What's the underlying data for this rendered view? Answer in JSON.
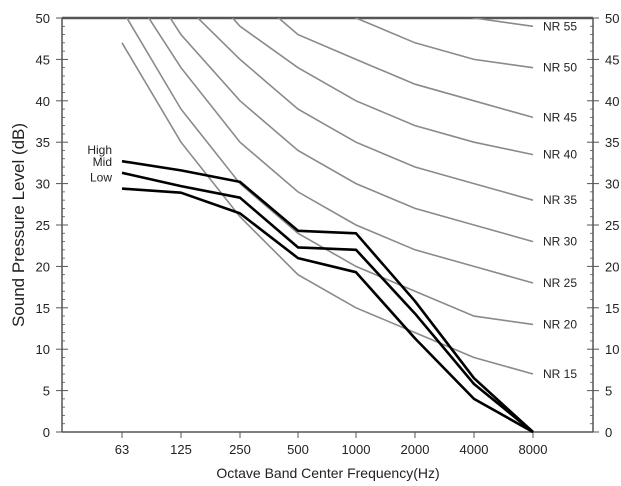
{
  "chart_data": {
    "type": "line",
    "xlabel": "Octave Band Center Frequency(Hz)",
    "ylabel": "Sound Pressure Level (dB)",
    "categories": [
      "63",
      "125",
      "250",
      "500",
      "1000",
      "2000",
      "4000",
      "8000"
    ],
    "ylim": [
      0,
      50
    ],
    "yticks": [
      "0",
      "5",
      "10",
      "15",
      "20",
      "25",
      "30",
      "35",
      "40",
      "45",
      "50"
    ],
    "grid": false,
    "reference_series": [
      {
        "name": "NR 15",
        "values": [
          47,
          35,
          26,
          19,
          15,
          12,
          9,
          7
        ]
      },
      {
        "name": "NR 20",
        "values": [
          51,
          39,
          30,
          24,
          20,
          17,
          14,
          13
        ]
      },
      {
        "name": "NR 25",
        "values": [
          55,
          44,
          35,
          29,
          25,
          22,
          20,
          18
        ]
      },
      {
        "name": "NR 30",
        "values": [
          59,
          48,
          40,
          34,
          30,
          27,
          25,
          23
        ]
      },
      {
        "name": "NR 35",
        "values": [
          63,
          52,
          45,
          39,
          35,
          32,
          30,
          28
        ]
      },
      {
        "name": "NR 40",
        "values": [
          67,
          57,
          49,
          44,
          40,
          37,
          35,
          33.5
        ]
      },
      {
        "name": "NR 45",
        "values": [
          71,
          61,
          54,
          48,
          45,
          42,
          40,
          38
        ]
      },
      {
        "name": "NR 50",
        "values": [
          75,
          65,
          59,
          53,
          50,
          47,
          45,
          44
        ]
      },
      {
        "name": "NR 55",
        "values": [
          79,
          70,
          63,
          58,
          55,
          52,
          50,
          49
        ]
      }
    ],
    "series": [
      {
        "name": "High",
        "values": [
          32.7,
          31.6,
          30.2,
          24.3,
          24.0,
          15.8,
          6.5,
          0
        ]
      },
      {
        "name": "Mid",
        "values": [
          31.3,
          29.7,
          28.3,
          22.3,
          22.0,
          14.3,
          5.8,
          0
        ]
      },
      {
        "name": "Low",
        "values": [
          29.4,
          28.9,
          26.4,
          21.0,
          19.3,
          11.3,
          4.0,
          0
        ]
      }
    ],
    "colors": {
      "reference": "#8a8a8a",
      "series": "#000000",
      "axis": "#555555"
    }
  }
}
